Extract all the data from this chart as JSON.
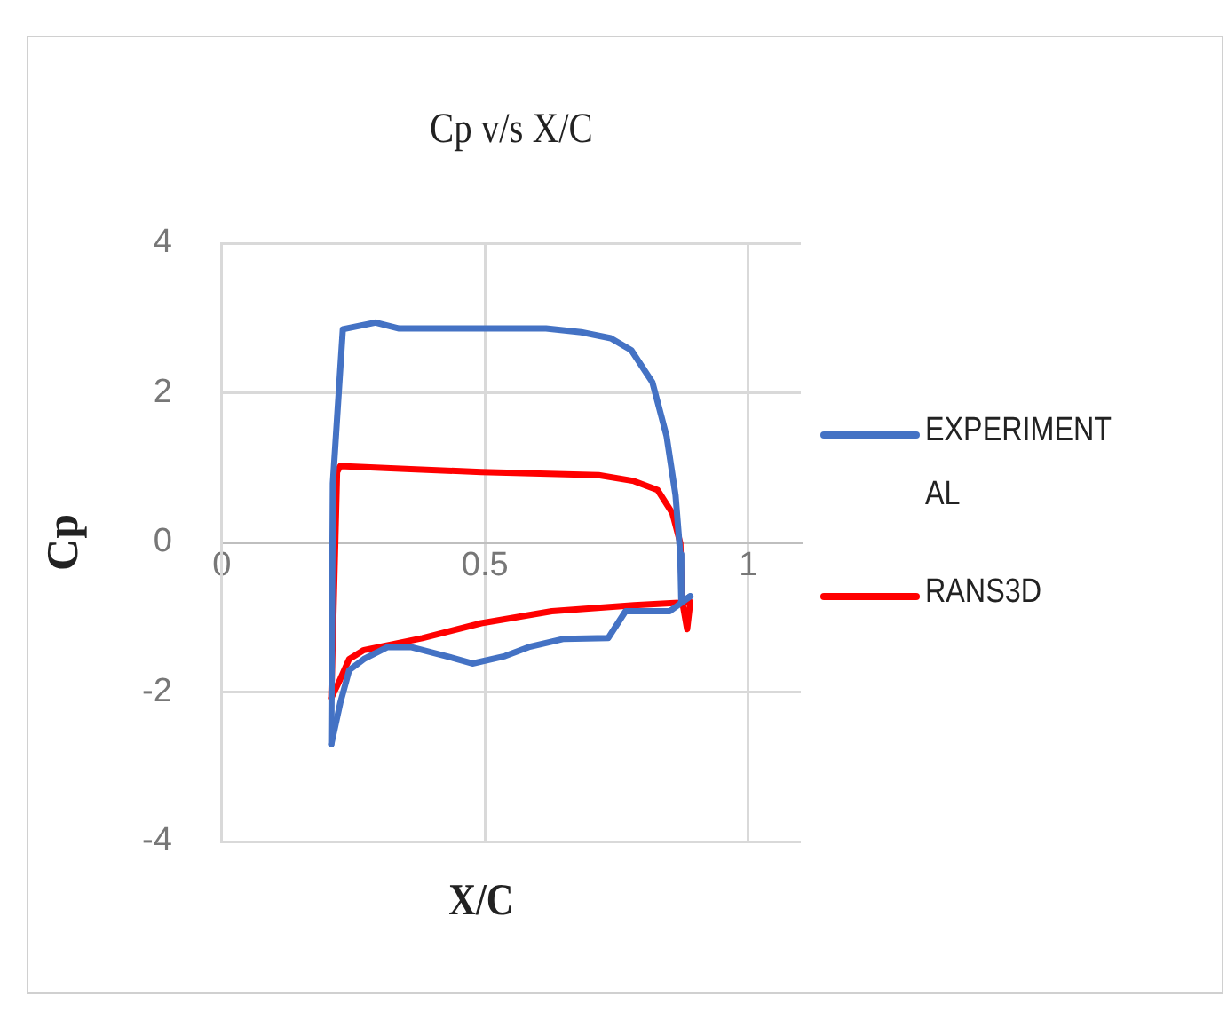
{
  "chart_data": {
    "type": "line",
    "title": "Cp v/s X/C",
    "xlabel": "X/C",
    "ylabel": "Cp",
    "xlim": [
      0,
      1.1
    ],
    "xticks": [
      0,
      0.5,
      1
    ],
    "ylim": [
      -4,
      4
    ],
    "yticks": [
      -4,
      -2,
      0,
      2,
      4
    ],
    "grid": true,
    "legend": "right",
    "marker": "none",
    "line_style": "solid",
    "series": [
      {
        "name": "EXPERIMENTAL",
        "color": "#4472c4",
        "x": [
          0.208,
          0.211,
          0.23,
          0.292,
          0.337,
          0.493,
          0.616,
          0.683,
          0.739,
          0.778,
          0.818,
          0.845,
          0.862,
          0.871,
          0.873,
          0.89
        ],
        "values": [
          -2.7,
          0.79,
          2.85,
          2.94,
          2.86,
          2.86,
          2.86,
          2.81,
          2.73,
          2.57,
          2.14,
          1.42,
          0.63,
          -0.16,
          -0.8,
          -0.72
        ]
      },
      {
        "color": "#4472c4",
        "x": [
          0.208,
          0.225,
          0.242,
          0.27,
          0.315,
          0.359,
          0.426,
          0.476,
          0.538,
          0.583,
          0.65,
          0.734,
          0.767,
          0.851,
          0.89
        ],
        "values": [
          -2.7,
          -2.15,
          -1.71,
          -1.56,
          -1.4,
          -1.4,
          -1.52,
          -1.62,
          -1.52,
          -1.4,
          -1.29,
          -1.28,
          -0.92,
          -0.92,
          -0.72
        ]
      },
      {
        "name": "RANS3D",
        "color": "#ff0000",
        "x": [
          0.208,
          0.219,
          0.225,
          0.359,
          0.493,
          0.716,
          0.783,
          0.828,
          0.856,
          0.871,
          0.875,
          0.884,
          0.89
        ],
        "values": [
          -2.08,
          0.94,
          1.02,
          0.98,
          0.94,
          0.9,
          0.82,
          0.7,
          0.39,
          -0.01,
          -0.8,
          -1.16,
          -0.8
        ]
      },
      {
        "color": "#ff0000",
        "x": [
          0.208,
          0.225,
          0.242,
          0.27,
          0.381,
          0.493,
          0.627,
          0.783,
          0.89
        ],
        "values": [
          -2.08,
          -1.83,
          -1.56,
          -1.44,
          -1.28,
          -1.08,
          -0.92,
          -0.84,
          -0.8
        ]
      }
    ]
  }
}
